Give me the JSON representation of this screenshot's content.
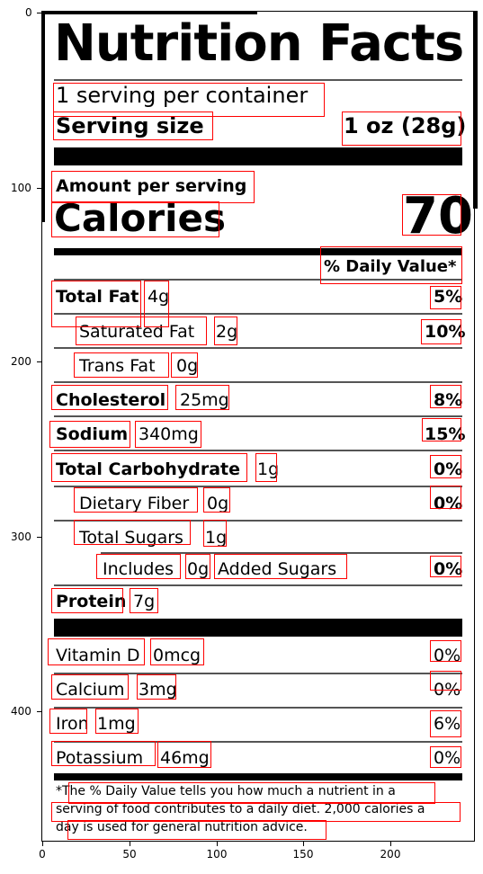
{
  "label": {
    "title": "Nutrition Facts",
    "servings": "1 serving per container",
    "serving_size_label": "Serving size",
    "serving_size_value": "1 oz (28g)",
    "amount_per_serving": "Amount per serving",
    "calories_label": "Calories",
    "calories_value": "70",
    "daily_value_header": "% Daily Value*",
    "nutrients": [
      {
        "name": "Total Fat",
        "amount": "4g",
        "dv": "5%"
      },
      {
        "name": "Saturated Fat",
        "amount": "2g",
        "dv": "10%"
      },
      {
        "name": "Trans Fat",
        "amount": "0g",
        "dv": ""
      },
      {
        "name": "Cholesterol",
        "amount": "25mg",
        "dv": "8%"
      },
      {
        "name": "Sodium",
        "amount": "340mg",
        "dv": "15%"
      },
      {
        "name": "Total Carbohydrate",
        "amount": "1g",
        "dv": "0%"
      },
      {
        "name": "Dietary Fiber",
        "amount": "0g",
        "dv": "0%"
      },
      {
        "name": "Total Sugars",
        "amount": "1g",
        "dv": ""
      },
      {
        "name": "Includes",
        "amount": "0g",
        "extra": "Added Sugars",
        "dv": "0%"
      },
      {
        "name": "Protein",
        "amount": "7g",
        "dv": ""
      }
    ],
    "vitamins": [
      {
        "name": "Vitamin D",
        "amount": "0mcg",
        "dv": "0%"
      },
      {
        "name": "Calcium",
        "amount": "3mg",
        "dv": "0%"
      },
      {
        "name": "Iron",
        "amount": "1mg",
        "dv": "6%"
      },
      {
        "name": "Potassium",
        "amount": "46mg",
        "dv": "0%"
      }
    ],
    "footnote_lines": [
      "*The % Daily Value tells you how much a nutrient in a",
      "serving of food contributes to a daily diet. 2,000 calories a",
      "day is used for general nutrition advice."
    ]
  },
  "axes": {
    "x_ticks": [
      "0",
      "50",
      "100",
      "150",
      "200"
    ],
    "y_ticks": [
      "0",
      "100",
      "200",
      "300",
      "400"
    ]
  },
  "colors": {
    "box_color": "#ff0000",
    "rule_color": "#000000"
  }
}
